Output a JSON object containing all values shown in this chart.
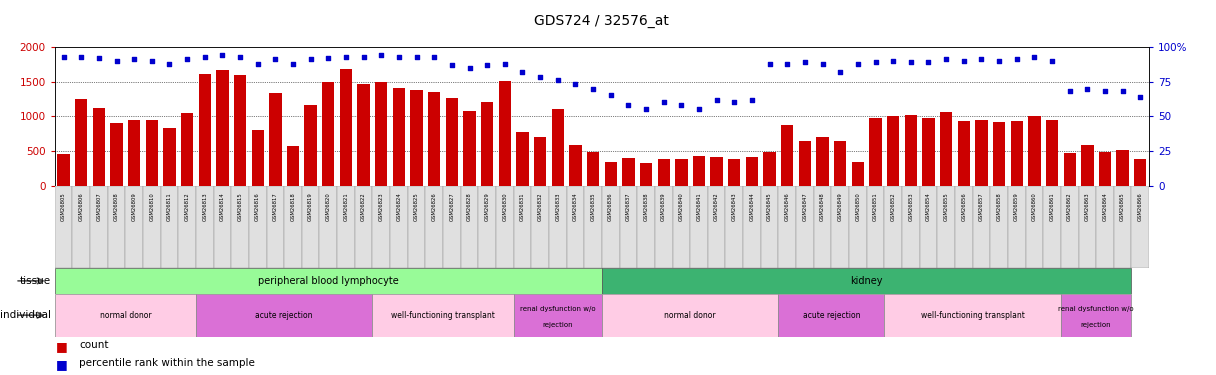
{
  "title": "GDS724 / 32576_at",
  "samples": [
    "GSM26805",
    "GSM26806",
    "GSM26807",
    "GSM26808",
    "GSM26809",
    "GSM26810",
    "GSM26811",
    "GSM26812",
    "GSM26813",
    "GSM26814",
    "GSM26815",
    "GSM26816",
    "GSM26817",
    "GSM26818",
    "GSM26819",
    "GSM26820",
    "GSM26821",
    "GSM26822",
    "GSM26823",
    "GSM26824",
    "GSM26825",
    "GSM26826",
    "GSM26827",
    "GSM26828",
    "GSM26829",
    "GSM26830",
    "GSM26831",
    "GSM26832",
    "GSM26833",
    "GSM26834",
    "GSM26835",
    "GSM26836",
    "GSM26837",
    "GSM26838",
    "GSM26839",
    "GSM26840",
    "GSM26841",
    "GSM26842",
    "GSM26843",
    "GSM26844",
    "GSM26845",
    "GSM26846",
    "GSM26847",
    "GSM26848",
    "GSM26849",
    "GSM26850",
    "GSM26851",
    "GSM26852",
    "GSM26853",
    "GSM26854",
    "GSM26855",
    "GSM26856",
    "GSM26857",
    "GSM26858",
    "GSM26859",
    "GSM26860",
    "GSM26861",
    "GSM26862",
    "GSM26863",
    "GSM26864",
    "GSM26865",
    "GSM26866"
  ],
  "counts": [
    450,
    1250,
    1120,
    900,
    940,
    950,
    830,
    1040,
    1610,
    1670,
    1590,
    800,
    1330,
    570,
    1160,
    1500,
    1680,
    1470,
    1490,
    1400,
    1380,
    1350,
    1270,
    1070,
    1210,
    1510,
    780,
    700,
    1100,
    580,
    480,
    340,
    400,
    320,
    390,
    380,
    420,
    410,
    390,
    410,
    490,
    870,
    650,
    700,
    640,
    340,
    980,
    1000,
    1020,
    980,
    1060,
    930,
    950,
    920,
    930,
    1010,
    940,
    470,
    580,
    490,
    510,
    380
  ],
  "percentiles": [
    93,
    93,
    92,
    90,
    91,
    90,
    88,
    91,
    93,
    94,
    93,
    88,
    91,
    88,
    91,
    92,
    93,
    93,
    94,
    93,
    93,
    93,
    87,
    85,
    87,
    88,
    82,
    78,
    76,
    73,
    70,
    65,
    58,
    55,
    60,
    58,
    55,
    62,
    60,
    62,
    88,
    88,
    89,
    88,
    82,
    88,
    89,
    90,
    89,
    89,
    91,
    90,
    91,
    90,
    91,
    93,
    90,
    68,
    70,
    68,
    68,
    64
  ],
  "tissue_groups": [
    {
      "label": "peripheral blood lymphocyte",
      "start": 0,
      "end": 30,
      "color": "#98FB98"
    },
    {
      "label": "kidney",
      "start": 31,
      "end": 60,
      "color": "#3CB371"
    }
  ],
  "individual_groups": [
    {
      "label": "normal donor",
      "start": 0,
      "end": 7,
      "color": "#FFCCE5"
    },
    {
      "label": "acute rejection",
      "start": 8,
      "end": 17,
      "color": "#DA70D6"
    },
    {
      "label": "well-functioning transplant",
      "start": 18,
      "end": 25,
      "color": "#FFCCE5"
    },
    {
      "label": "renal dysfunction w/o rejection",
      "start": 26,
      "end": 30,
      "color": "#DA70D6"
    },
    {
      "label": "normal donor",
      "start": 31,
      "end": 40,
      "color": "#FFCCE5"
    },
    {
      "label": "acute rejection",
      "start": 41,
      "end": 46,
      "color": "#DA70D6"
    },
    {
      "label": "well-functioning transplant",
      "start": 47,
      "end": 56,
      "color": "#FFCCE5"
    },
    {
      "label": "renal dysfunction w/o rejection",
      "start": 57,
      "end": 60,
      "color": "#DA70D6"
    }
  ],
  "bar_color": "#CC0000",
  "dot_color": "#0000CD",
  "left_axis_color": "#CC0000",
  "right_axis_color": "#0000CD",
  "ylim_left": [
    0,
    2000
  ],
  "ylim_right": [
    0,
    100
  ],
  "yticks_left": [
    0,
    500,
    1000,
    1500,
    2000
  ],
  "yticks_right": [
    0,
    25,
    50,
    75,
    100
  ],
  "grid_lines": [
    500,
    1000,
    1500
  ]
}
